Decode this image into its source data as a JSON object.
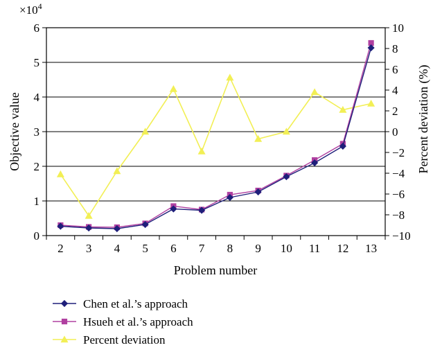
{
  "chart_data": {
    "type": "line",
    "categories": [
      "2",
      "3",
      "4",
      "5",
      "6",
      "7",
      "8",
      "9",
      "10",
      "11",
      "12",
      "13"
    ],
    "xlabel": "Problem number",
    "ylabel": "Objective value",
    "y2label": "Percent deviation (%)",
    "y_multiplier_label": "×10",
    "y_multiplier_exp": "4",
    "ylim": [
      0,
      6
    ],
    "y2lim": [
      -10,
      10
    ],
    "yticks": [
      "0",
      "1",
      "2",
      "3",
      "4",
      "5",
      "6"
    ],
    "y2ticks": [
      "−10",
      "−8",
      "−6",
      "−4",
      "−2",
      "0",
      "2",
      "4",
      "6",
      "8",
      "10"
    ],
    "grid": "horizontal",
    "legend_position": "bottom",
    "series": [
      {
        "name": "Chen et al.’s approach",
        "axis": "left",
        "color": "#1f1f7a",
        "marker": "diamond",
        "values": [
          0.27,
          0.22,
          0.2,
          0.32,
          0.77,
          0.73,
          1.1,
          1.26,
          1.7,
          2.1,
          2.58,
          5.42
        ]
      },
      {
        "name": "Hsueh et al.’s approach",
        "axis": "left",
        "color": "#b040a0",
        "marker": "square",
        "values": [
          0.3,
          0.25,
          0.24,
          0.35,
          0.85,
          0.75,
          1.18,
          1.3,
          1.73,
          2.18,
          2.65,
          5.56
        ]
      },
      {
        "name": "Percent deviation",
        "axis": "right",
        "color": "#f2ef55",
        "marker": "triangle",
        "values": [
          -4.1,
          -8.1,
          -3.8,
          0.0,
          4.1,
          -1.9,
          5.2,
          -0.7,
          0.0,
          3.8,
          2.1,
          2.7
        ]
      }
    ]
  }
}
